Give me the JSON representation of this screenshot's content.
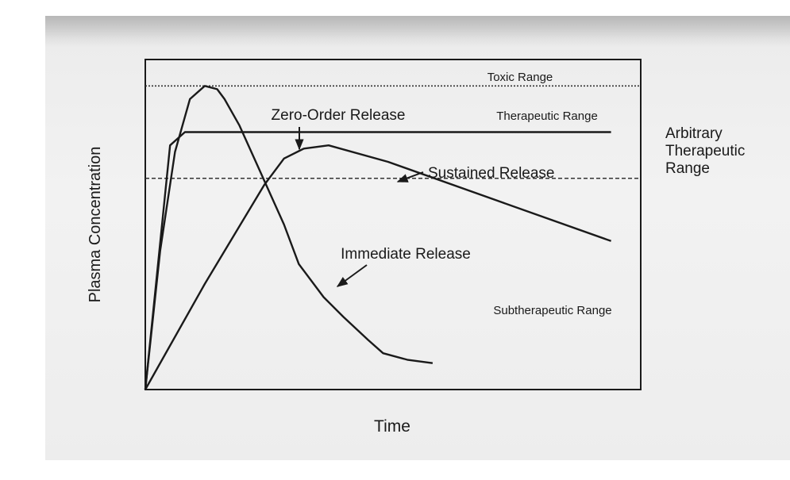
{
  "chart_data": {
    "type": "line",
    "xlabel": "Time",
    "ylabel": "Plasma Concentration",
    "xlim": [
      0,
      100
    ],
    "ylim": [
      0,
      100
    ],
    "grid": false,
    "ranges": [
      {
        "name": "Toxic Range",
        "bounds": [
          92,
          100
        ]
      },
      {
        "name": "Therapeutic Range",
        "bounds": [
          64,
          92
        ]
      },
      {
        "name": "Subtherapeutic Range",
        "bounds": [
          0,
          64
        ]
      }
    ],
    "range_bracket_label": [
      "Arbitrary",
      "Therapeutic",
      "Range"
    ],
    "range_lines": [
      {
        "y": 92,
        "style": "dotted"
      },
      {
        "y": 64,
        "style": "dashed"
      }
    ],
    "series": [
      {
        "name": "Zero-Order Release",
        "x": [
          0,
          5,
          8,
          94
        ],
        "y": [
          0,
          74,
          78,
          78
        ]
      },
      {
        "name": "Sustained Release",
        "x": [
          0,
          12,
          24,
          28,
          32,
          37,
          49,
          94
        ],
        "y": [
          0,
          32,
          62,
          70,
          73,
          74,
          69,
          45
        ]
      },
      {
        "name": "Immediate Release",
        "x": [
          0,
          3,
          6,
          9,
          12,
          14.5,
          16,
          19,
          22,
          25,
          28,
          31,
          36,
          40,
          45,
          48,
          53,
          58
        ],
        "y": [
          0,
          42,
          72,
          88,
          92,
          91,
          88,
          80,
          70,
          60,
          50,
          38,
          28,
          22,
          15,
          11,
          9,
          8
        ]
      }
    ],
    "annotations": [
      {
        "text": "Zero-Order Release",
        "points_to": "Zero-Order Release"
      },
      {
        "text": "Sustained Release",
        "points_to": "Sustained Release"
      },
      {
        "text": "Immediate Release",
        "points_to": "Immediate Release"
      }
    ]
  }
}
